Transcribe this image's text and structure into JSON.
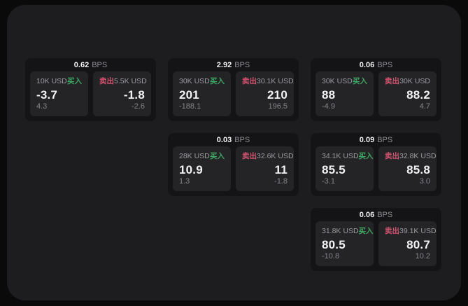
{
  "labels": {
    "bps_unit": "BPS",
    "buy": "买入",
    "sell": "卖出"
  },
  "colors": {
    "buy_green": "#3fa662",
    "sell_red": "#d1536f",
    "panel_bg": "#1d1d1f",
    "card_bg": "#141416",
    "tile_bg": "#242427",
    "outer_bg": "#0a0a0b"
  },
  "cards": [
    {
      "bps": "0.62",
      "buy": {
        "amount": "10K USD",
        "value": "-3.7",
        "sub": "4.3"
      },
      "sell": {
        "amount": "5.5K USD",
        "value": "-1.8",
        "sub": "-2.6"
      }
    },
    {
      "bps": "2.92",
      "buy": {
        "amount": "30K USD",
        "value": "201",
        "sub": "-188.1"
      },
      "sell": {
        "amount": "30.1K USD",
        "value": "210",
        "sub": "196.5"
      }
    },
    {
      "bps": "0.06",
      "buy": {
        "amount": "30K USD",
        "value": "88",
        "sub": "-4.9"
      },
      "sell": {
        "amount": "30K USD",
        "value": "88.2",
        "sub": "4.7"
      }
    },
    {
      "bps": "0.03",
      "buy": {
        "amount": "28K USD",
        "value": "10.9",
        "sub": "1.3"
      },
      "sell": {
        "amount": "32.6K USD",
        "value": "11",
        "sub": "-1.8"
      }
    },
    {
      "bps": "0.09",
      "buy": {
        "amount": "34.1K USD",
        "value": "85.5",
        "sub": "-3.1"
      },
      "sell": {
        "amount": "32.8K USD",
        "value": "85.8",
        "sub": "3.0"
      }
    },
    {
      "bps": "0.06",
      "buy": {
        "amount": "31.8K USD",
        "value": "80.5",
        "sub": "-10.8"
      },
      "sell": {
        "amount": "39.1K USD",
        "value": "80.7",
        "sub": "10.2"
      }
    }
  ]
}
